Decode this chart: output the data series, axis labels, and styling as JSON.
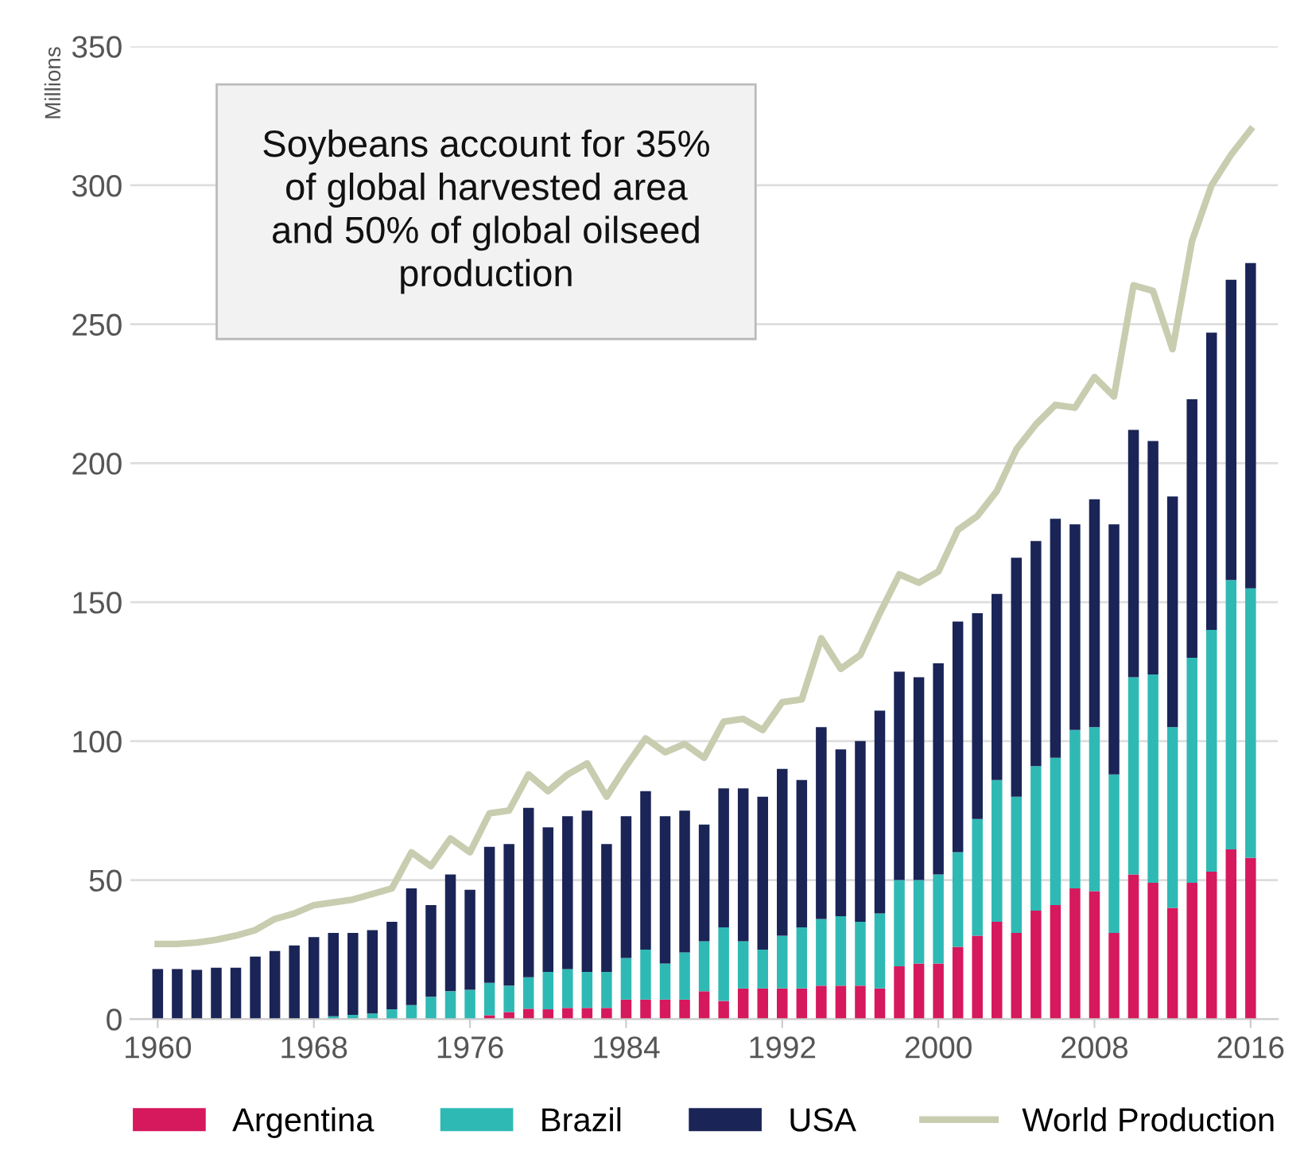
{
  "chart_data": {
    "type": "bar",
    "stacked": true,
    "ylabel": "Millions",
    "x": [
      1960,
      1961,
      1962,
      1963,
      1964,
      1965,
      1966,
      1967,
      1968,
      1969,
      1970,
      1971,
      1972,
      1973,
      1974,
      1975,
      1976,
      1977,
      1978,
      1979,
      1980,
      1981,
      1982,
      1983,
      1984,
      1985,
      1986,
      1987,
      1988,
      1989,
      1990,
      1991,
      1992,
      1993,
      1994,
      1995,
      1996,
      1997,
      1998,
      1999,
      2000,
      2001,
      2002,
      2003,
      2004,
      2005,
      2006,
      2007,
      2008,
      2009,
      2010,
      2011,
      2012,
      2013,
      2014,
      2015,
      2016
    ],
    "series": [
      {
        "name": "Argentina",
        "color": "#d6185c",
        "values": [
          0,
          0,
          0,
          0,
          0,
          0,
          0,
          0,
          0,
          0,
          0,
          0,
          0,
          0,
          0,
          0,
          0,
          1.4,
          2.5,
          3.7,
          3.5,
          4,
          4,
          4,
          7,
          7,
          7,
          7,
          10,
          6.5,
          11,
          11,
          11,
          11,
          12,
          12,
          12,
          11,
          19,
          20,
          20,
          26,
          30,
          35,
          31,
          39,
          41,
          47,
          46,
          31,
          52,
          49,
          40,
          49,
          53,
          61,
          58
        ]
      },
      {
        "name": "Brazil",
        "color": "#2fb9b5",
        "values": [
          0,
          0,
          0,
          0,
          0,
          0,
          0,
          0,
          0,
          1,
          1.5,
          2,
          3.5,
          5,
          8,
          10,
          10.5,
          11.6,
          9.5,
          11.3,
          13.5,
          14,
          13,
          13,
          15,
          18,
          13,
          17,
          18,
          26.5,
          17,
          14,
          19,
          22,
          24,
          25,
          23,
          27,
          31,
          30,
          32,
          34,
          42,
          51,
          49,
          52,
          53,
          57,
          59,
          57,
          71,
          75,
          65,
          81,
          87,
          97,
          97
        ]
      },
      {
        "name": "USA",
        "color": "#1a2456",
        "values": [
          18,
          18,
          17.7,
          18.5,
          18.5,
          22.5,
          24.5,
          26.5,
          29.5,
          30,
          29.5,
          30,
          31.5,
          42,
          33,
          42,
          36,
          49,
          51,
          61,
          52,
          55,
          58,
          46,
          51,
          57,
          53,
          51,
          42,
          50,
          55,
          55,
          60,
          53,
          69,
          60,
          65,
          73,
          75,
          73,
          76,
          83,
          74,
          67,
          86,
          81,
          86,
          74,
          82,
          90,
          89,
          84,
          83,
          93,
          107,
          108,
          117
        ]
      },
      {
        "name": "World Production",
        "type": "line",
        "color": "#c8cdb0",
        "values": [
          27,
          27,
          27.5,
          28.5,
          30,
          32,
          36,
          38,
          41,
          42,
          43,
          45,
          47,
          60,
          55,
          65,
          60,
          74,
          75,
          88,
          82,
          88,
          92,
          80,
          91,
          101,
          96,
          99,
          94,
          107,
          108,
          104,
          114,
          115,
          137,
          126,
          131,
          146,
          160,
          157,
          161,
          176,
          181,
          190,
          205,
          214,
          221,
          220,
          231,
          224,
          264,
          262,
          241,
          280,
          300,
          311,
          320
        ]
      }
    ],
    "xlim": [
      1958.6,
      2017.4
    ],
    "xticks": [
      1960,
      1968,
      1976,
      1984,
      1992,
      2000,
      2008,
      2016
    ],
    "ylim": [
      0,
      350
    ],
    "yticks": [
      0,
      50,
      100,
      150,
      200,
      250,
      300,
      350
    ],
    "grid": "y",
    "legend": "bottom",
    "annotations": [
      "Soybeans account for 35%\nof global harvested area\nand 50% of global oilseed\nproduction"
    ]
  }
}
